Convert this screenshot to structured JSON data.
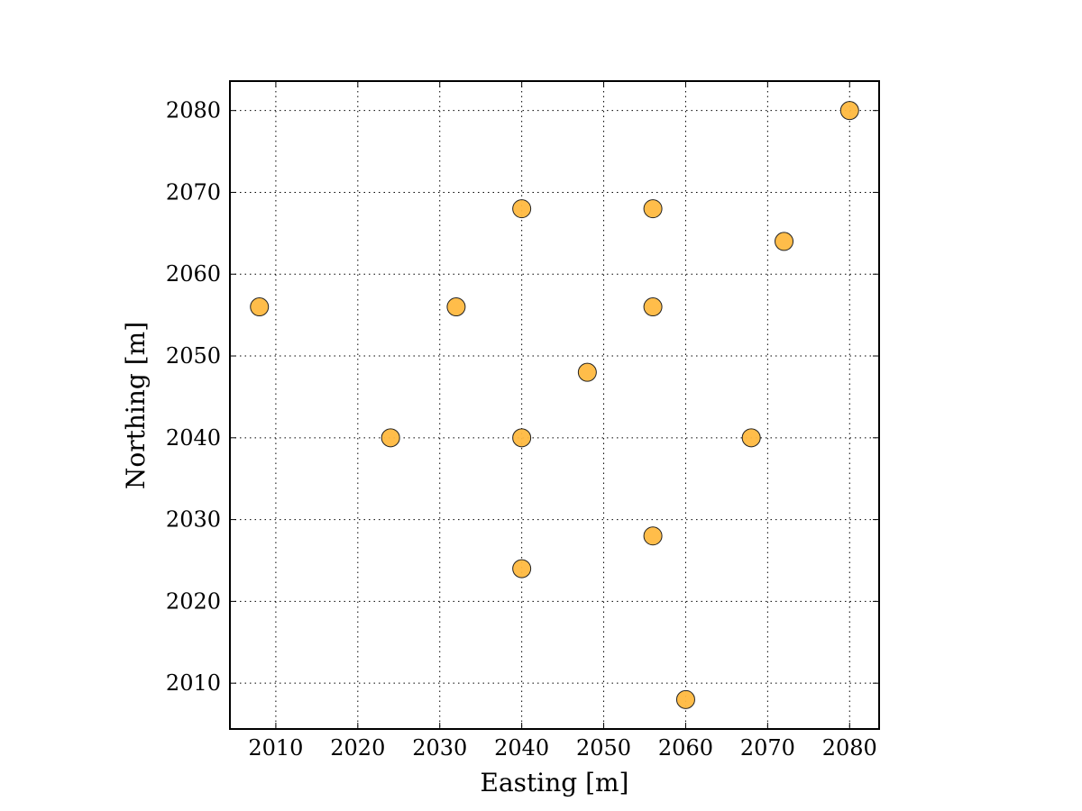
{
  "chart_data": {
    "type": "scatter",
    "xlabel": "Easting [m]",
    "ylabel": "Northing [m]",
    "xlim": [
      2004.4,
      2083.6
    ],
    "ylim": [
      2004.4,
      2083.6
    ],
    "xticks": [
      2010,
      2020,
      2030,
      2040,
      2050,
      2060,
      2070,
      2080
    ],
    "yticks": [
      2010,
      2020,
      2030,
      2040,
      2050,
      2060,
      2070,
      2080
    ],
    "grid": true,
    "marker_color": "#ffb940",
    "marker_edge_color": "#222222",
    "points": [
      {
        "x": 2008,
        "y": 2056
      },
      {
        "x": 2024,
        "y": 2040
      },
      {
        "x": 2032,
        "y": 2056
      },
      {
        "x": 2040,
        "y": 2068
      },
      {
        "x": 2040,
        "y": 2040
      },
      {
        "x": 2040,
        "y": 2024
      },
      {
        "x": 2048,
        "y": 2048
      },
      {
        "x": 2056,
        "y": 2068
      },
      {
        "x": 2056,
        "y": 2056
      },
      {
        "x": 2056,
        "y": 2028
      },
      {
        "x": 2060,
        "y": 2008
      },
      {
        "x": 2068,
        "y": 2040
      },
      {
        "x": 2072,
        "y": 2064
      },
      {
        "x": 2080,
        "y": 2080
      }
    ]
  }
}
